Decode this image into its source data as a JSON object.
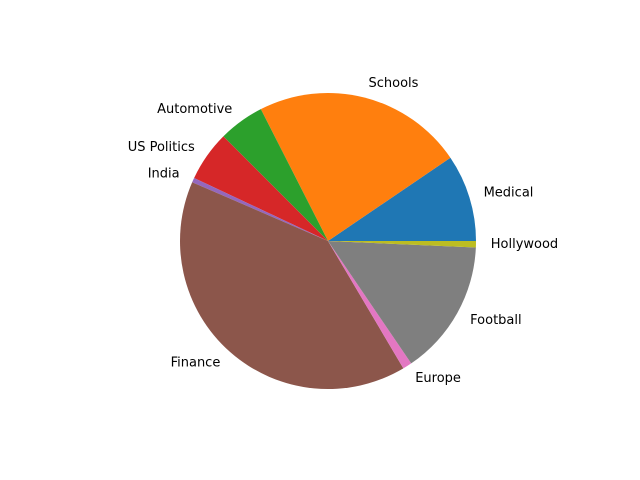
{
  "chart_data": {
    "type": "pie",
    "title": "",
    "start_angle_deg": 0,
    "direction": "counterclockwise",
    "legend": "none",
    "slices": [
      {
        "label": "Medical",
        "value": 9.5,
        "color": "#1f77b4"
      },
      {
        "label": "Schools",
        "value": 23.0,
        "color": "#ff7f0e"
      },
      {
        "label": "Automotive",
        "value": 5.0,
        "color": "#2ca02c"
      },
      {
        "label": "US Politics",
        "value": 5.5,
        "color": "#d62728"
      },
      {
        "label": "India",
        "value": 0.5,
        "color": "#9467bd"
      },
      {
        "label": "Finance",
        "value": 40.0,
        "color": "#8c564b"
      },
      {
        "label": "Europe",
        "value": 1.0,
        "color": "#e377c2"
      },
      {
        "label": "Football",
        "value": 14.8,
        "color": "#7f7f7f"
      },
      {
        "label": "Hollywood",
        "value": 0.7,
        "color": "#bcbd22"
      }
    ]
  }
}
